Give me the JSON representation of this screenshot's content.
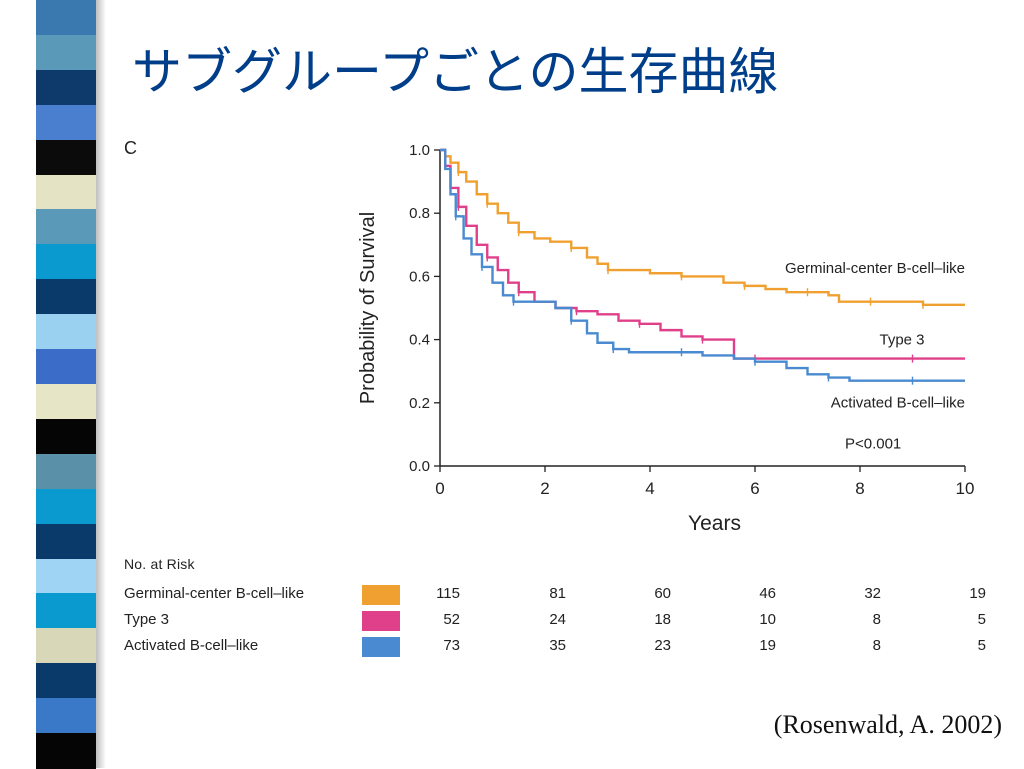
{
  "slide": {
    "title": "サブグループごとの生存曲線",
    "panel_letter": "C",
    "citation": "(Rosenwald, A. 2002)",
    "strip_colors": [
      "#3a78b0",
      "#5a9ab8",
      "#0d3a6a",
      "#4a7fd0",
      "#0b0b0b",
      "#e4e3c4",
      "#5a9ab8",
      "#0a9ad0",
      "#0a3a6a",
      "#9ad0f0",
      "#3a6cc8",
      "#e6e5c6",
      "#050505",
      "#5a90a8",
      "#0a9ad0",
      "#0a3a6a",
      "#a0d4f4",
      "#0a9ad0",
      "#d8d8b8",
      "#0a3a6a",
      "#3a78c8",
      "#050505"
    ]
  },
  "chart_data": {
    "type": "line",
    "xlabel": "Years",
    "ylabel": "Probability of Survival",
    "xlim": [
      0,
      10
    ],
    "ylim": [
      0,
      1
    ],
    "x_ticks": [
      "0",
      "2",
      "4",
      "6",
      "8",
      "10"
    ],
    "y_ticks": [
      "0.0",
      "0.2",
      "0.4",
      "0.6",
      "0.8",
      "1.0"
    ],
    "annotation": "P<0.001",
    "series": [
      {
        "name": "Germinal-center B-cell–like",
        "color": "#f0a030",
        "points": [
          [
            0,
            1.0
          ],
          [
            0.1,
            0.98
          ],
          [
            0.2,
            0.96
          ],
          [
            0.35,
            0.93
          ],
          [
            0.5,
            0.9
          ],
          [
            0.7,
            0.86
          ],
          [
            0.9,
            0.83
          ],
          [
            1.1,
            0.8
          ],
          [
            1.3,
            0.77
          ],
          [
            1.5,
            0.74
          ],
          [
            1.8,
            0.72
          ],
          [
            2.1,
            0.71
          ],
          [
            2.5,
            0.69
          ],
          [
            2.8,
            0.66
          ],
          [
            3.0,
            0.64
          ],
          [
            3.2,
            0.62
          ],
          [
            3.6,
            0.62
          ],
          [
            4.0,
            0.61
          ],
          [
            4.6,
            0.6
          ],
          [
            5.0,
            0.6
          ],
          [
            5.4,
            0.58
          ],
          [
            5.8,
            0.57
          ],
          [
            6.2,
            0.56
          ],
          [
            6.6,
            0.55
          ],
          [
            7.0,
            0.55
          ],
          [
            7.4,
            0.54
          ],
          [
            7.6,
            0.52
          ],
          [
            8.2,
            0.52
          ],
          [
            8.8,
            0.52
          ],
          [
            9.0,
            0.52
          ],
          [
            9.2,
            0.51
          ],
          [
            9.6,
            0.51
          ],
          [
            10.0,
            0.51
          ]
        ]
      },
      {
        "name": "Type 3",
        "color": "#e0408a",
        "points": [
          [
            0,
            1.0
          ],
          [
            0.1,
            0.95
          ],
          [
            0.2,
            0.88
          ],
          [
            0.35,
            0.82
          ],
          [
            0.5,
            0.76
          ],
          [
            0.7,
            0.7
          ],
          [
            0.9,
            0.66
          ],
          [
            1.1,
            0.62
          ],
          [
            1.3,
            0.58
          ],
          [
            1.5,
            0.55
          ],
          [
            1.8,
            0.52
          ],
          [
            2.2,
            0.5
          ],
          [
            2.6,
            0.49
          ],
          [
            3.0,
            0.48
          ],
          [
            3.4,
            0.46
          ],
          [
            3.8,
            0.45
          ],
          [
            4.2,
            0.43
          ],
          [
            4.6,
            0.41
          ],
          [
            5.0,
            0.4
          ],
          [
            5.4,
            0.4
          ],
          [
            5.6,
            0.34
          ],
          [
            6.0,
            0.34
          ],
          [
            7.0,
            0.34
          ],
          [
            8.0,
            0.34
          ],
          [
            9.0,
            0.34
          ],
          [
            10.0,
            0.34
          ]
        ]
      },
      {
        "name": "Activated B-cell–like",
        "color": "#4a8ad0",
        "points": [
          [
            0,
            1.0
          ],
          [
            0.1,
            0.94
          ],
          [
            0.2,
            0.86
          ],
          [
            0.3,
            0.79
          ],
          [
            0.45,
            0.72
          ],
          [
            0.6,
            0.67
          ],
          [
            0.8,
            0.63
          ],
          [
            1.0,
            0.58
          ],
          [
            1.2,
            0.54
          ],
          [
            1.4,
            0.52
          ],
          [
            1.8,
            0.52
          ],
          [
            2.2,
            0.5
          ],
          [
            2.5,
            0.46
          ],
          [
            2.8,
            0.42
          ],
          [
            3.0,
            0.39
          ],
          [
            3.3,
            0.37
          ],
          [
            3.6,
            0.36
          ],
          [
            4.0,
            0.36
          ],
          [
            4.6,
            0.36
          ],
          [
            5.0,
            0.35
          ],
          [
            5.6,
            0.34
          ],
          [
            6.0,
            0.33
          ],
          [
            6.6,
            0.31
          ],
          [
            7.0,
            0.29
          ],
          [
            7.4,
            0.28
          ],
          [
            7.8,
            0.27
          ],
          [
            8.4,
            0.27
          ],
          [
            9.0,
            0.27
          ],
          [
            10.0,
            0.27
          ]
        ]
      }
    ]
  },
  "risk_table": {
    "title": "No. at Risk",
    "rows": [
      {
        "label": "Germinal-center B-cell–like",
        "color": "#f0a030",
        "values": [
          "115",
          "81",
          "60",
          "46",
          "32",
          "19"
        ]
      },
      {
        "label": "Type 3",
        "color": "#e0408a",
        "values": [
          "52",
          "24",
          "18",
          "10",
          "8",
          "5"
        ]
      },
      {
        "label": "Activated B-cell–like",
        "color": "#4a8ad0",
        "values": [
          "73",
          "35",
          "23",
          "19",
          "8",
          "5"
        ]
      }
    ]
  }
}
